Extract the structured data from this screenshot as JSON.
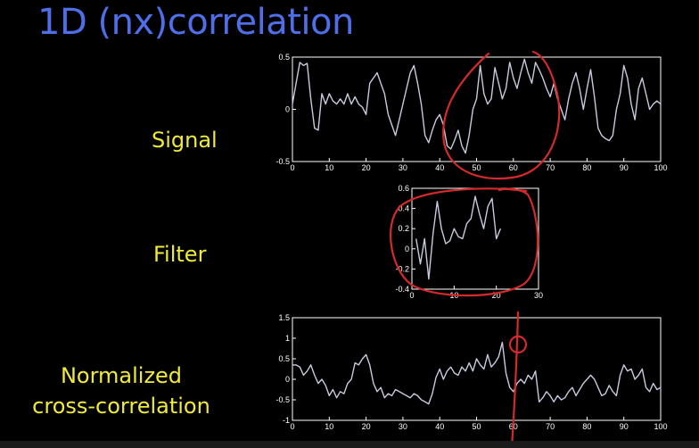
{
  "slide": {
    "title": "1D (nx)correlation",
    "labels": {
      "signal": "Signal",
      "filter": "Filter",
      "ncc_line1": "Normalized",
      "ncc_line2": "cross-correlation"
    }
  },
  "colors": {
    "background": "#000000",
    "title": "#4f6fe8",
    "labels": "#f0ea3a",
    "plot_line": "#c8cbe0",
    "plot_frame": "#ffffff",
    "annotation": "#d42a2a"
  },
  "chart_data": [
    {
      "type": "line",
      "xlim": [
        0,
        100
      ],
      "ylim": [
        -0.5,
        0.5
      ],
      "xticks": [
        0,
        10,
        20,
        30,
        40,
        50,
        60,
        70,
        80,
        90,
        100
      ],
      "yticks": [
        -0.5,
        0,
        0.5
      ],
      "ytick_labels": [
        "-0.5",
        "0",
        "0.5"
      ],
      "series": [
        {
          "x": [
            0,
            1,
            2,
            3,
            4,
            5,
            6,
            7,
            8,
            9,
            10,
            11,
            12,
            13,
            14,
            15,
            16,
            17,
            18,
            19,
            20,
            21,
            22,
            23,
            24,
            25,
            26,
            27,
            28,
            29,
            30,
            31,
            32,
            33,
            34,
            35,
            36,
            37,
            38,
            39,
            40,
            41,
            42,
            43,
            44,
            45,
            46,
            47,
            48,
            49,
            50,
            51,
            52,
            53,
            54,
            55,
            56,
            57,
            58,
            59,
            60,
            61,
            62,
            63,
            64,
            65,
            66,
            67,
            68,
            69,
            70,
            71,
            72,
            73,
            74,
            75,
            76,
            77,
            78,
            79,
            80,
            81,
            82,
            83,
            84,
            85,
            86,
            87,
            88,
            89,
            90,
            91,
            92,
            93,
            94,
            95,
            96,
            97,
            98,
            99,
            100
          ],
          "values": [
            0.05,
            0.25,
            0.45,
            0.42,
            0.44,
            0.1,
            -0.18,
            -0.2,
            0.15,
            0.05,
            0.15,
            0.08,
            0.05,
            0.1,
            0.05,
            0.15,
            0.05,
            0.12,
            0.05,
            0.02,
            -0.05,
            0.25,
            0.3,
            0.35,
            0.25,
            0.15,
            -0.05,
            -0.15,
            -0.25,
            -0.1,
            0.05,
            0.2,
            0.35,
            0.42,
            0.25,
            0.05,
            -0.25,
            -0.32,
            -0.2,
            -0.1,
            -0.05,
            -0.15,
            -0.35,
            -0.38,
            -0.3,
            -0.2,
            -0.35,
            -0.42,
            -0.25,
            0.0,
            0.1,
            0.42,
            0.15,
            0.05,
            0.1,
            0.4,
            0.25,
            0.1,
            0.2,
            0.45,
            0.3,
            0.2,
            0.35,
            0.48,
            0.35,
            0.25,
            0.45,
            0.38,
            0.3,
            0.2,
            0.12,
            0.25,
            0.1,
            0.0,
            -0.1,
            0.1,
            0.25,
            0.35,
            0.2,
            0.0,
            0.2,
            0.38,
            0.12,
            -0.18,
            -0.25,
            -0.28,
            -0.3,
            -0.25,
            0.0,
            0.15,
            0.42,
            0.3,
            0.05,
            -0.1,
            0.2,
            0.3,
            0.15,
            0.0,
            0.05,
            0.08,
            0.05
          ]
        }
      ]
    },
    {
      "type": "line",
      "xlim": [
        0,
        30
      ],
      "ylim": [
        -0.4,
        0.6
      ],
      "xticks": [
        0,
        10,
        20,
        30
      ],
      "yticks": [
        -0.4,
        -0.2,
        0,
        0.2,
        0.4,
        0.6
      ],
      "ytick_labels": [
        "-0.4",
        "-0.2",
        "0",
        "0.2",
        "0.4",
        "0.6"
      ],
      "series": [
        {
          "x": [
            1,
            2,
            3,
            4,
            5,
            6,
            7,
            8,
            9,
            10,
            11,
            12,
            13,
            14,
            15,
            16,
            17,
            18,
            19,
            20,
            21
          ],
          "values": [
            0.1,
            -0.15,
            0.1,
            -0.3,
            0.15,
            0.47,
            0.2,
            0.05,
            0.08,
            0.2,
            0.12,
            0.1,
            0.25,
            0.3,
            0.52,
            0.35,
            0.2,
            0.42,
            0.5,
            0.1,
            0.2
          ]
        }
      ]
    },
    {
      "type": "line",
      "xlim": [
        0,
        100
      ],
      "ylim": [
        -1,
        1.5
      ],
      "xticks": [
        0,
        10,
        20,
        30,
        40,
        50,
        60,
        70,
        80,
        90,
        100
      ],
      "yticks": [
        -1,
        -0.5,
        0,
        0.5,
        1,
        1.5
      ],
      "ytick_labels": [
        "-1",
        "-0.5",
        "0",
        "0.5",
        "1",
        "1.5"
      ],
      "series": [
        {
          "x": [
            0,
            1,
            2,
            3,
            4,
            5,
            6,
            7,
            8,
            9,
            10,
            11,
            12,
            13,
            14,
            15,
            16,
            17,
            18,
            19,
            20,
            21,
            22,
            23,
            24,
            25,
            26,
            27,
            28,
            29,
            30,
            31,
            32,
            33,
            34,
            35,
            36,
            37,
            38,
            39,
            40,
            41,
            42,
            43,
            44,
            45,
            46,
            47,
            48,
            49,
            50,
            51,
            52,
            53,
            54,
            55,
            56,
            57,
            58,
            59,
            60,
            61,
            62,
            63,
            64,
            65,
            66,
            67,
            68,
            69,
            70,
            71,
            72,
            73,
            74,
            75,
            76,
            77,
            78,
            79,
            80,
            81,
            82,
            83,
            84,
            85,
            86,
            87,
            88,
            89,
            90,
            91,
            92,
            93,
            94,
            95,
            96,
            97,
            98,
            99,
            100
          ],
          "values": [
            0.35,
            0.35,
            0.3,
            0.1,
            0.2,
            0.35,
            0.1,
            -0.1,
            0.0,
            -0.15,
            -0.4,
            -0.25,
            -0.45,
            -0.3,
            -0.35,
            -0.1,
            0.0,
            0.4,
            0.35,
            0.5,
            0.6,
            0.35,
            -0.1,
            -0.3,
            -0.2,
            -0.45,
            -0.35,
            -0.4,
            -0.25,
            -0.3,
            -0.35,
            -0.4,
            -0.45,
            -0.35,
            -0.4,
            -0.5,
            -0.55,
            -0.6,
            -0.35,
            0.05,
            0.25,
            0.0,
            0.2,
            0.3,
            0.15,
            0.1,
            0.3,
            0.2,
            0.4,
            0.2,
            0.5,
            0.35,
            0.25,
            0.6,
            0.3,
            0.4,
            0.55,
            0.9,
            0.15,
            -0.2,
            -0.3,
            -0.1,
            0.0,
            -0.1,
            0.1,
            0.0,
            0.2,
            -0.55,
            -0.45,
            -0.3,
            -0.4,
            -0.55,
            -0.4,
            -0.5,
            -0.45,
            -0.3,
            -0.2,
            -0.4,
            -0.25,
            -0.1,
            0.0,
            0.1,
            0.0,
            -0.2,
            -0.4,
            -0.35,
            -0.15,
            -0.3,
            -0.4,
            0.1,
            0.35,
            0.2,
            0.25,
            0.0,
            0.1,
            0.25,
            -0.2,
            -0.3,
            -0.1,
            -0.25,
            -0.2
          ]
        }
      ]
    }
  ]
}
